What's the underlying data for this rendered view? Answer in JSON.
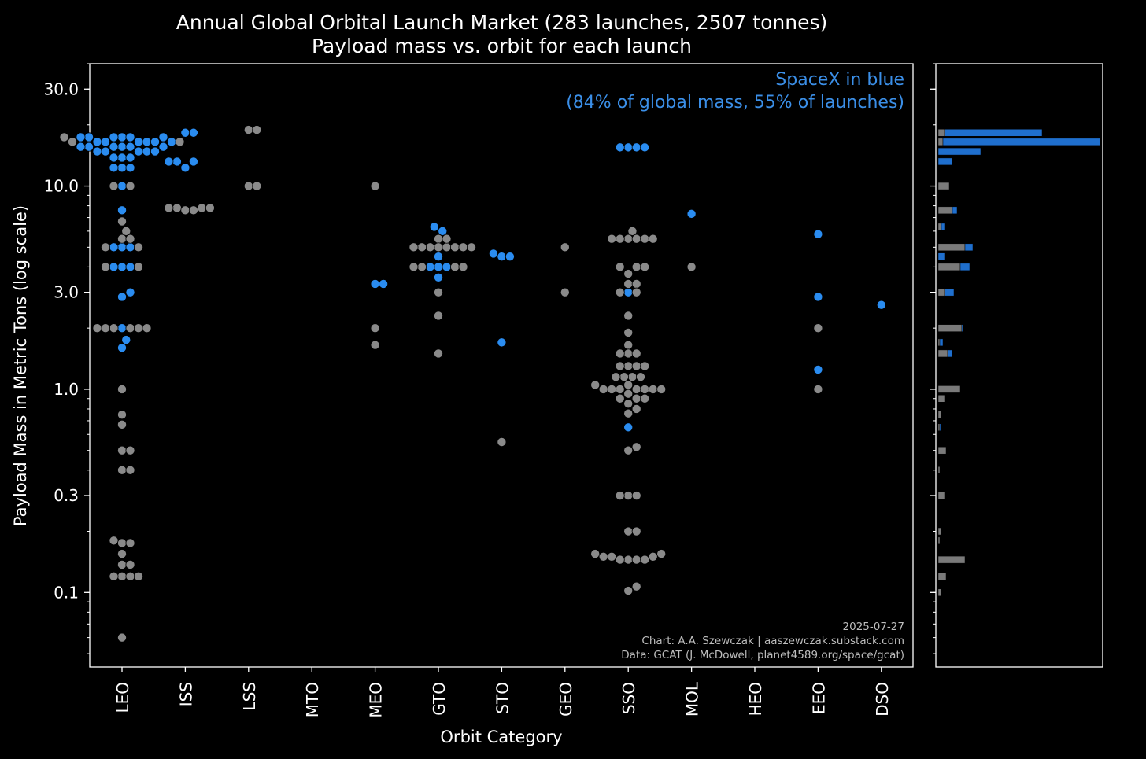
{
  "title": "Annual Global Orbital Launch Market (283 launches, 2507 tonnes)",
  "subtitle": "Payload mass vs. orbit for each launch",
  "annotation": {
    "line1": "SpaceX in blue",
    "line2": "(84% of global mass, 55% of launches)",
    "color": "#3b8fe8"
  },
  "credits": {
    "date": "2025-07-27",
    "chart": "Chart: A.A. Szewczak | aaszewczak.substack.com",
    "data": "Data: GCAT (J. McDowell, planet4589.org/space/gcat)"
  },
  "colors": {
    "spacex": "#2a8cf0",
    "other": "#8a8a8a",
    "background": "#000000",
    "axes": "#ffffff"
  },
  "chart_data": {
    "type": "scatter",
    "subtype": "swarm",
    "xlabel": "Orbit Category",
    "ylabel": "Payload Mass in Metric Tons (log scale)",
    "yscale": "log",
    "ylim": [
      0.043,
      40
    ],
    "y_ticks": [
      0.1,
      0.3,
      1.0,
      3.0,
      10.0,
      30.0
    ],
    "y_tick_labels": [
      "0.1",
      "0.3",
      "1.0",
      "3.0",
      "10.0",
      "30.0"
    ],
    "categories": [
      "LEO",
      "ISS",
      "LSS",
      "MTO",
      "MEO",
      "GTO",
      "STO",
      "GEO",
      "SSO",
      "MOL",
      "HEO",
      "EEO",
      "DSO"
    ],
    "series": [
      {
        "name": "SpaceX",
        "points": [
          [
            "LEO",
            17.4
          ],
          [
            "LEO",
            17.4
          ],
          [
            "LEO",
            17.4
          ],
          [
            "LEO",
            17.4
          ],
          [
            "LEO",
            17.4
          ],
          [
            "LEO",
            17.4
          ],
          [
            "LEO",
            16.5
          ],
          [
            "LEO",
            16.5
          ],
          [
            "LEO",
            16.5
          ],
          [
            "LEO",
            16.5
          ],
          [
            "LEO",
            16.5
          ],
          [
            "LEO",
            16.5
          ],
          [
            "LEO",
            15.6
          ],
          [
            "LEO",
            15.6
          ],
          [
            "LEO",
            15.6
          ],
          [
            "LEO",
            15.6
          ],
          [
            "LEO",
            15.6
          ],
          [
            "LEO",
            15.6
          ],
          [
            "LEO",
            14.8
          ],
          [
            "LEO",
            14.8
          ],
          [
            "LEO",
            14.8
          ],
          [
            "LEO",
            14.8
          ],
          [
            "LEO",
            14.8
          ],
          [
            "LEO",
            13.8
          ],
          [
            "LEO",
            13.8
          ],
          [
            "LEO",
            13.8
          ],
          [
            "LEO",
            12.3
          ],
          [
            "LEO",
            12.3
          ],
          [
            "LEO",
            12.3
          ],
          [
            "LEO",
            10.0
          ],
          [
            "LEO",
            7.6
          ],
          [
            "LEO",
            5.0
          ],
          [
            "LEO",
            5.0
          ],
          [
            "LEO",
            5.0
          ],
          [
            "LEO",
            4.0
          ],
          [
            "LEO",
            4.0
          ],
          [
            "LEO",
            4.0
          ],
          [
            "LEO",
            3.0
          ],
          [
            "LEO",
            2.85
          ],
          [
            "LEO",
            2.0
          ],
          [
            "LEO",
            1.75
          ],
          [
            "LEO",
            1.6
          ],
          [
            "ISS",
            18.3
          ],
          [
            "ISS",
            18.3
          ],
          [
            "ISS",
            13.2
          ],
          [
            "ISS",
            13.2
          ],
          [
            "ISS",
            13.2
          ],
          [
            "ISS",
            12.3
          ],
          [
            "MEO",
            3.3
          ],
          [
            "MEO",
            3.3
          ],
          [
            "GTO",
            6.3
          ],
          [
            "GTO",
            6.0
          ],
          [
            "GTO",
            4.5
          ],
          [
            "GTO",
            4.0
          ],
          [
            "GTO",
            4.0
          ],
          [
            "GTO",
            4.0
          ],
          [
            "GTO",
            3.55
          ],
          [
            "STO",
            4.5
          ],
          [
            "STO",
            4.5
          ],
          [
            "STO",
            4.65
          ],
          [
            "STO",
            1.7
          ],
          [
            "SSO",
            15.5
          ],
          [
            "SSO",
            15.5
          ],
          [
            "SSO",
            15.5
          ],
          [
            "SSO",
            15.5
          ],
          [
            "SSO",
            3.0
          ],
          [
            "SSO",
            0.65
          ],
          [
            "MOL",
            7.3
          ],
          [
            "EEO",
            5.8
          ],
          [
            "EEO",
            2.85
          ],
          [
            "EEO",
            1.25
          ],
          [
            "DSO",
            2.6
          ]
        ]
      },
      {
        "name": "Other",
        "points": [
          [
            "LEO",
            17.4
          ],
          [
            "LEO",
            16.5
          ],
          [
            "LEO",
            16.5
          ],
          [
            "LEO",
            10.0
          ],
          [
            "LEO",
            10.0
          ],
          [
            "LEO",
            6.7
          ],
          [
            "LEO",
            6.0
          ],
          [
            "LEO",
            5.5
          ],
          [
            "LEO",
            5.5
          ],
          [
            "LEO",
            5.0
          ],
          [
            "LEO",
            5.0
          ],
          [
            "LEO",
            4.0
          ],
          [
            "LEO",
            4.0
          ],
          [
            "LEO",
            2.0
          ],
          [
            "LEO",
            2.0
          ],
          [
            "LEO",
            2.0
          ],
          [
            "LEO",
            2.0
          ],
          [
            "LEO",
            2.0
          ],
          [
            "LEO",
            2.0
          ],
          [
            "LEO",
            1.0
          ],
          [
            "LEO",
            0.75
          ],
          [
            "LEO",
            0.67
          ],
          [
            "LEO",
            0.5
          ],
          [
            "LEO",
            0.5
          ],
          [
            "LEO",
            0.4
          ],
          [
            "LEO",
            0.4
          ],
          [
            "LEO",
            0.18
          ],
          [
            "LEO",
            0.175
          ],
          [
            "LEO",
            0.175
          ],
          [
            "LEO",
            0.155
          ],
          [
            "LEO",
            0.137
          ],
          [
            "LEO",
            0.137
          ],
          [
            "LEO",
            0.12
          ],
          [
            "LEO",
            0.12
          ],
          [
            "LEO",
            0.12
          ],
          [
            "LEO",
            0.12
          ],
          [
            "LEO",
            0.06
          ],
          [
            "ISS",
            7.8
          ],
          [
            "ISS",
            7.8
          ],
          [
            "ISS",
            7.6
          ],
          [
            "ISS",
            7.6
          ],
          [
            "ISS",
            7.8
          ],
          [
            "ISS",
            7.8
          ],
          [
            "LSS",
            18.9
          ],
          [
            "LSS",
            18.9
          ],
          [
            "LSS",
            10.0
          ],
          [
            "LSS",
            10.0
          ],
          [
            "MEO",
            10.0
          ],
          [
            "MEO",
            2.0
          ],
          [
            "MEO",
            1.65
          ],
          [
            "GTO",
            5.5
          ],
          [
            "GTO",
            5.0
          ],
          [
            "GTO",
            5.0
          ],
          [
            "GTO",
            5.0
          ],
          [
            "GTO",
            5.0
          ],
          [
            "GTO",
            5.0
          ],
          [
            "GTO",
            5.0
          ],
          [
            "GTO",
            5.0
          ],
          [
            "GTO",
            5.0
          ],
          [
            "GTO",
            5.5
          ],
          [
            "GTO",
            4.0
          ],
          [
            "GTO",
            4.0
          ],
          [
            "GTO",
            4.0
          ],
          [
            "GTO",
            4.0
          ],
          [
            "GTO",
            3.0
          ],
          [
            "GTO",
            2.3
          ],
          [
            "GTO",
            1.5
          ],
          [
            "STO",
            0.55
          ],
          [
            "GEO",
            5.0
          ],
          [
            "GEO",
            3.0
          ],
          [
            "SSO",
            6.0
          ],
          [
            "SSO",
            5.5
          ],
          [
            "SSO",
            5.5
          ],
          [
            "SSO",
            5.5
          ],
          [
            "SSO",
            5.5
          ],
          [
            "SSO",
            5.5
          ],
          [
            "SSO",
            5.5
          ],
          [
            "SSO",
            4.0
          ],
          [
            "SSO",
            4.0
          ],
          [
            "SSO",
            4.0
          ],
          [
            "SSO",
            3.7
          ],
          [
            "SSO",
            3.3
          ],
          [
            "SSO",
            3.3
          ],
          [
            "SSO",
            3.0
          ],
          [
            "SSO",
            3.0
          ],
          [
            "SSO",
            2.3
          ],
          [
            "SSO",
            1.9
          ],
          [
            "SSO",
            1.65
          ],
          [
            "SSO",
            1.5
          ],
          [
            "SSO",
            1.5
          ],
          [
            "SSO",
            1.5
          ],
          [
            "SSO",
            1.3
          ],
          [
            "SSO",
            1.3
          ],
          [
            "SSO",
            1.3
          ],
          [
            "SSO",
            1.3
          ],
          [
            "SSO",
            1.15
          ],
          [
            "SSO",
            1.15
          ],
          [
            "SSO",
            1.15
          ],
          [
            "SSO",
            1.15
          ],
          [
            "SSO",
            1.05
          ],
          [
            "SSO",
            1.05
          ],
          [
            "SSO",
            1.0
          ],
          [
            "SSO",
            1.0
          ],
          [
            "SSO",
            1.0
          ],
          [
            "SSO",
            1.0
          ],
          [
            "SSO",
            1.0
          ],
          [
            "SSO",
            1.0
          ],
          [
            "SSO",
            1.0
          ],
          [
            "SSO",
            0.95
          ],
          [
            "SSO",
            0.9
          ],
          [
            "SSO",
            0.9
          ],
          [
            "SSO",
            0.9
          ],
          [
            "SSO",
            0.85
          ],
          [
            "SSO",
            0.8
          ],
          [
            "SSO",
            0.76
          ],
          [
            "SSO",
            0.52
          ],
          [
            "SSO",
            0.5
          ],
          [
            "SSO",
            0.3
          ],
          [
            "SSO",
            0.3
          ],
          [
            "SSO",
            0.3
          ],
          [
            "SSO",
            0.2
          ],
          [
            "SSO",
            0.2
          ],
          [
            "SSO",
            0.155
          ],
          [
            "SSO",
            0.155
          ],
          [
            "SSO",
            0.15
          ],
          [
            "SSO",
            0.145
          ],
          [
            "SSO",
            0.145
          ],
          [
            "SSO",
            0.145
          ],
          [
            "SSO",
            0.145
          ],
          [
            "SSO",
            0.15
          ],
          [
            "SSO",
            0.15
          ],
          [
            "SSO",
            0.107
          ],
          [
            "SSO",
            0.102
          ],
          [
            "MOL",
            4.0
          ],
          [
            "EEO",
            2.0
          ],
          [
            "EEO",
            1.0
          ]
        ]
      }
    ],
    "histogram": {
      "description": "Marginal histogram of payload mass (log bins), mass per bin, SpaceX bars in blue, others in gray",
      "bins": [
        {
          "y": 18.3,
          "spacex": 0.62,
          "other": 0.04
        },
        {
          "y": 16.5,
          "spacex": 1.0,
          "other": 0.03
        },
        {
          "y": 14.8,
          "spacex": 0.27,
          "other": 0.0
        },
        {
          "y": 13.2,
          "spacex": 0.09,
          "other": 0.0
        },
        {
          "y": 10.0,
          "spacex": 0.0,
          "other": 0.07
        },
        {
          "y": 7.6,
          "spacex": 0.03,
          "other": 0.09
        },
        {
          "y": 6.3,
          "spacex": 0.02,
          "other": 0.02
        },
        {
          "y": 5.0,
          "spacex": 0.05,
          "other": 0.17
        },
        {
          "y": 4.5,
          "spacex": 0.04,
          "other": 0.0
        },
        {
          "y": 4.0,
          "spacex": 0.06,
          "other": 0.14
        },
        {
          "y": 3.0,
          "spacex": 0.06,
          "other": 0.04
        },
        {
          "y": 2.0,
          "spacex": 0.01,
          "other": 0.15
        },
        {
          "y": 1.7,
          "spacex": 0.02,
          "other": 0.01
        },
        {
          "y": 1.5,
          "spacex": 0.03,
          "other": 0.06
        },
        {
          "y": 1.0,
          "spacex": 0.0,
          "other": 0.14
        },
        {
          "y": 0.9,
          "spacex": 0.0,
          "other": 0.04
        },
        {
          "y": 0.75,
          "spacex": 0.0,
          "other": 0.02
        },
        {
          "y": 0.65,
          "spacex": 0.01,
          "other": 0.01
        },
        {
          "y": 0.5,
          "spacex": 0.0,
          "other": 0.05
        },
        {
          "y": 0.4,
          "spacex": 0.0,
          "other": 0.01
        },
        {
          "y": 0.3,
          "spacex": 0.0,
          "other": 0.04
        },
        {
          "y": 0.2,
          "spacex": 0.0,
          "other": 0.02
        },
        {
          "y": 0.18,
          "spacex": 0.0,
          "other": 0.01
        },
        {
          "y": 0.145,
          "spacex": 0.0,
          "other": 0.17
        },
        {
          "y": 0.12,
          "spacex": 0.0,
          "other": 0.05
        },
        {
          "y": 0.1,
          "spacex": 0.0,
          "other": 0.02
        }
      ]
    }
  }
}
